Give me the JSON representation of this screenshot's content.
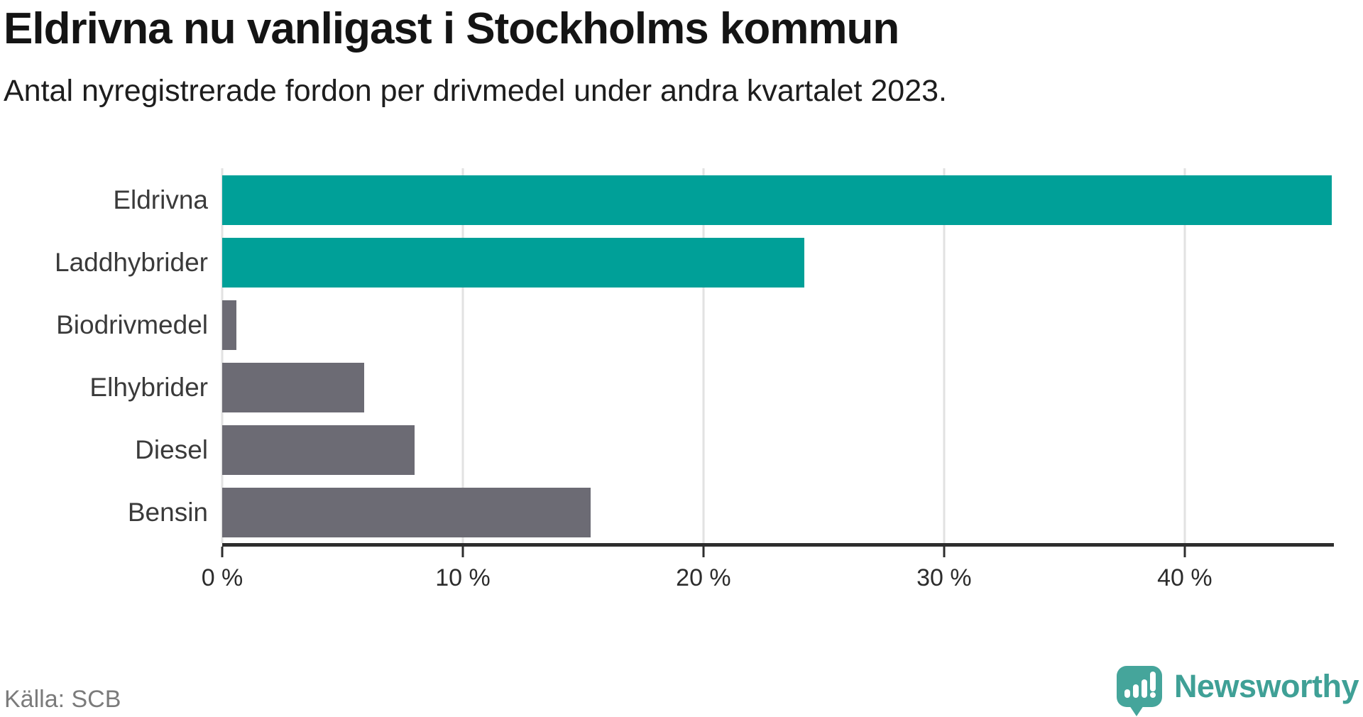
{
  "header": {
    "title": "Eldrivna nu vanligast i Stockholms kommun",
    "subtitle": "Antal nyregistrerade fordon per drivmedel under andra kvartalet 2023."
  },
  "footer": {
    "source": "Källa: SCB",
    "brand_name": "Newsworthy"
  },
  "colors": {
    "highlight_bar": "#00a098",
    "default_bar": "#6c6b74",
    "axis": "#2e2e2e",
    "gridline": "#e2e2e2",
    "brand_teal": "#45a59b",
    "brand_text": "#3fa096"
  },
  "chart_data": {
    "type": "bar",
    "orientation": "horizontal",
    "title": "Eldrivna nu vanligast i Stockholms kommun",
    "subtitle": "Antal nyregistrerade fordon per drivmedel under andra kvartalet 2023.",
    "source": "Källa: SCB",
    "categories": [
      "Eldrivna",
      "Laddhybrider",
      "Biodrivmedel",
      "Elhybrider",
      "Diesel",
      "Bensin"
    ],
    "values": [
      46.1,
      24.2,
      0.6,
      5.9,
      8.0,
      15.3
    ],
    "highlighted": [
      true,
      true,
      false,
      false,
      false,
      false
    ],
    "unit": "%",
    "xlim": [
      0,
      46.2
    ],
    "x_ticks": [
      0,
      10,
      20,
      30,
      40
    ],
    "x_tick_labels": [
      "0 %",
      "10 %",
      "20 %",
      "30 %",
      "40 %"
    ],
    "grid": true,
    "legend": "none"
  }
}
